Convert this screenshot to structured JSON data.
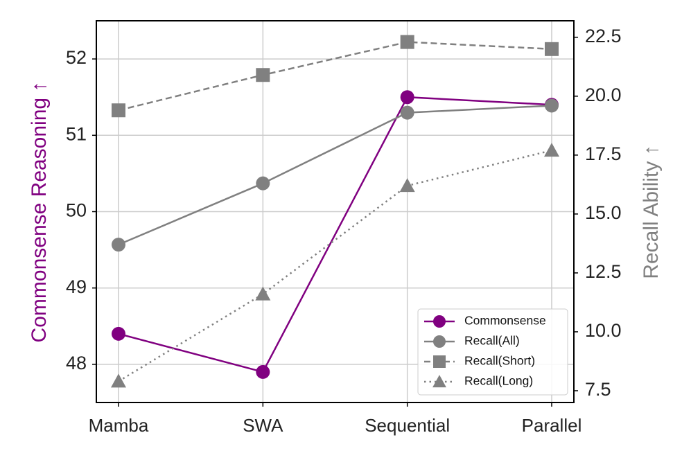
{
  "chart_data": {
    "type": "line",
    "title": "",
    "categories": [
      "Mamba",
      "SWA",
      "Sequential",
      "Parallel"
    ],
    "xlabel": "",
    "y_left": {
      "label": "Commonsense Reasoning ↑",
      "color": "#800080",
      "ylim": [
        47.5,
        52.5
      ],
      "ticks": [
        48,
        49,
        50,
        51,
        52
      ],
      "tick_labels": [
        "48",
        "49",
        "50",
        "51",
        "52"
      ]
    },
    "y_right": {
      "label": "Recall Ability ↑",
      "color": "#808080",
      "ylim": [
        7,
        23.2
      ],
      "ticks": [
        7.5,
        10.0,
        12.5,
        15.0,
        17.5,
        20.0,
        22.5
      ],
      "tick_labels": [
        "7.5",
        "10.0",
        "12.5",
        "15.0",
        "17.5",
        "20.0",
        "22.5"
      ]
    },
    "series": [
      {
        "name": "Commonsense",
        "axis": "left",
        "values": [
          48.4,
          47.9,
          51.5,
          51.4
        ],
        "color": "#800080",
        "marker": "circle",
        "linestyle": "solid"
      },
      {
        "name": "Recall(All)",
        "axis": "right",
        "values": [
          13.7,
          16.3,
          19.3,
          19.6
        ],
        "color": "#808080",
        "marker": "circle",
        "linestyle": "solid"
      },
      {
        "name": "Recall(Short)",
        "axis": "right",
        "values": [
          19.4,
          20.9,
          22.3,
          22.0
        ],
        "color": "#808080",
        "marker": "square",
        "linestyle": "dashed"
      },
      {
        "name": "Recall(Long)",
        "axis": "right",
        "values": [
          7.9,
          11.6,
          16.2,
          17.7
        ],
        "color": "#808080",
        "marker": "triangle",
        "linestyle": "dotted"
      }
    ],
    "grid": true,
    "legend_position": "lower-right"
  }
}
